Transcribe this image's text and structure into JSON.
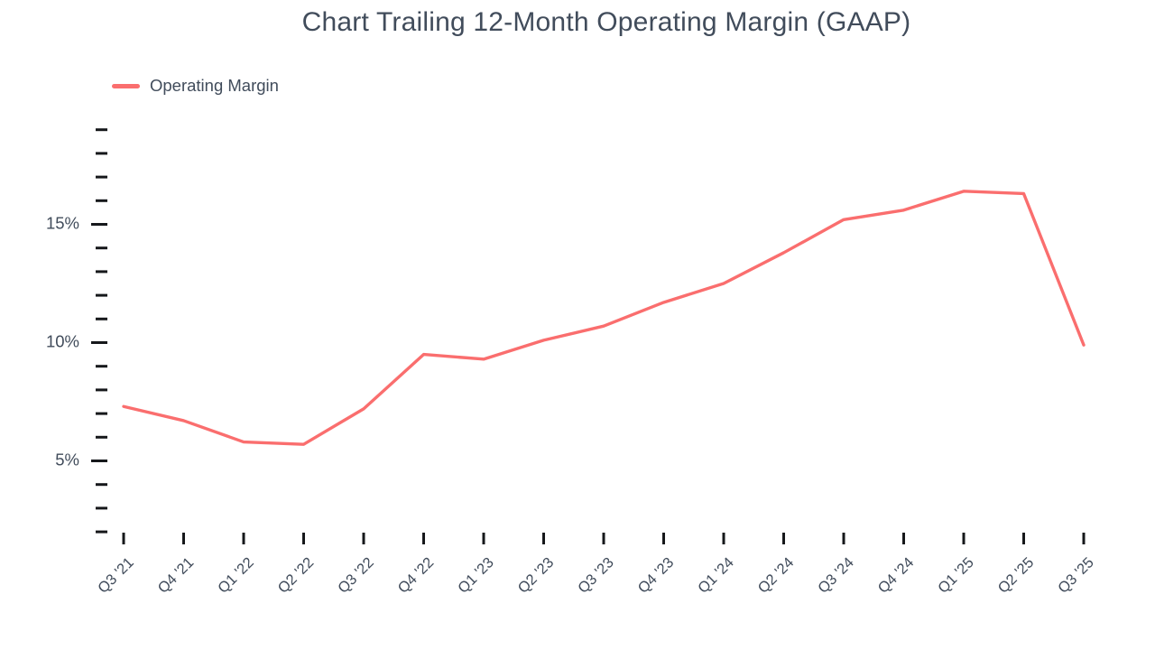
{
  "chart": {
    "title": "Chart Trailing 12-Month Operating Margin (GAAP)",
    "legend_label": "Operating Margin"
  },
  "chart_data": {
    "type": "line",
    "title": "Chart Trailing 12-Month Operating Margin (GAAP)",
    "categories": [
      "Q3 '21",
      "Q4 '21",
      "Q1 '22",
      "Q2 '22",
      "Q3 '22",
      "Q4 '22",
      "Q1 '23",
      "Q2 '23",
      "Q3 '23",
      "Q4 '23",
      "Q1 '24",
      "Q2 '24",
      "Q3 '24",
      "Q4 '24",
      "Q1 '25",
      "Q2 '25",
      "Q3 '25"
    ],
    "series": [
      {
        "name": "Operating Margin",
        "values": [
          7.3,
          6.7,
          5.8,
          5.7,
          7.2,
          9.5,
          9.3,
          10.1,
          10.7,
          11.7,
          12.5,
          13.8,
          15.2,
          15.6,
          16.4,
          16.3,
          9.9
        ]
      }
    ],
    "xlabel": "",
    "ylabel": "",
    "unit": "%",
    "ylim": [
      2,
      19
    ],
    "y_major_ticks": [
      5,
      10,
      15
    ],
    "y_major_tick_labels": [
      "5%",
      "10%",
      "15%"
    ],
    "y_minor_tick_step": 1,
    "grid": false,
    "legend_position": "top-left",
    "line_color": "#FA6E6E",
    "text_color": "#414C5B",
    "tick_color": "#16181B"
  }
}
